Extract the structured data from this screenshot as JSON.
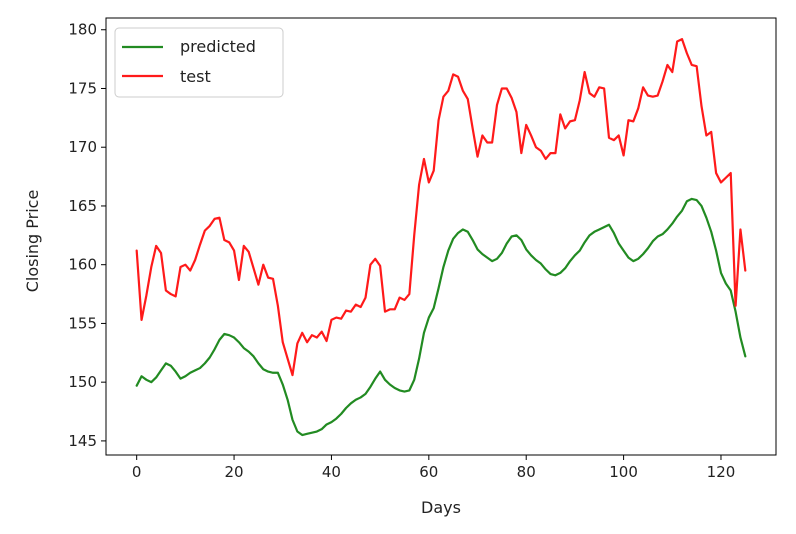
{
  "chart_data": {
    "type": "line",
    "title": "",
    "xlabel": "Days",
    "ylabel": "Closing Price",
    "xlim": [
      -6.3,
      131.3
    ],
    "ylim": [
      143.8,
      181.0
    ],
    "x_ticks": [
      0,
      20,
      40,
      60,
      80,
      100,
      120
    ],
    "y_ticks": [
      145,
      150,
      155,
      160,
      165,
      170,
      175,
      180
    ],
    "grid": false,
    "legend_position": "top-left",
    "series": [
      {
        "name": "predicted",
        "color": "#228b22",
        "points": [
          [
            0,
            149.7
          ],
          [
            1,
            150.5
          ],
          [
            2,
            150.2
          ],
          [
            3,
            150.0
          ],
          [
            4,
            150.4
          ],
          [
            5,
            151.0
          ],
          [
            6,
            151.6
          ],
          [
            7,
            151.4
          ],
          [
            8,
            150.9
          ],
          [
            9,
            150.3
          ],
          [
            10,
            150.5
          ],
          [
            11,
            150.8
          ],
          [
            12,
            151.0
          ],
          [
            13,
            151.2
          ],
          [
            14,
            151.6
          ],
          [
            15,
            152.1
          ],
          [
            16,
            152.8
          ],
          [
            17,
            153.6
          ],
          [
            18,
            154.1
          ],
          [
            19,
            154.0
          ],
          [
            20,
            153.8
          ],
          [
            21,
            153.4
          ],
          [
            22,
            152.9
          ],
          [
            23,
            152.6
          ],
          [
            24,
            152.2
          ],
          [
            25,
            151.6
          ],
          [
            26,
            151.1
          ],
          [
            27,
            150.9
          ],
          [
            28,
            150.8
          ],
          [
            29,
            150.8
          ],
          [
            30,
            149.8
          ],
          [
            31,
            148.5
          ],
          [
            32,
            146.8
          ],
          [
            33,
            145.8
          ],
          [
            34,
            145.5
          ],
          [
            35,
            145.6
          ],
          [
            36,
            145.7
          ],
          [
            37,
            145.8
          ],
          [
            38,
            146.0
          ],
          [
            39,
            146.4
          ],
          [
            40,
            146.6
          ],
          [
            41,
            146.9
          ],
          [
            42,
            147.3
          ],
          [
            43,
            147.8
          ],
          [
            44,
            148.2
          ],
          [
            45,
            148.5
          ],
          [
            46,
            148.7
          ],
          [
            47,
            149.0
          ],
          [
            48,
            149.6
          ],
          [
            49,
            150.3
          ],
          [
            50,
            150.9
          ],
          [
            51,
            150.2
          ],
          [
            52,
            149.8
          ],
          [
            53,
            149.5
          ],
          [
            54,
            149.3
          ],
          [
            55,
            149.2
          ],
          [
            56,
            149.3
          ],
          [
            57,
            150.2
          ],
          [
            58,
            152.0
          ],
          [
            59,
            154.2
          ],
          [
            60,
            155.5
          ],
          [
            61,
            156.3
          ],
          [
            62,
            158.0
          ],
          [
            63,
            159.8
          ],
          [
            64,
            161.2
          ],
          [
            65,
            162.2
          ],
          [
            66,
            162.7
          ],
          [
            67,
            163.0
          ],
          [
            68,
            162.8
          ],
          [
            69,
            162.1
          ],
          [
            70,
            161.3
          ],
          [
            71,
            160.9
          ],
          [
            72,
            160.6
          ],
          [
            73,
            160.3
          ],
          [
            74,
            160.5
          ],
          [
            75,
            161.0
          ],
          [
            76,
            161.8
          ],
          [
            77,
            162.4
          ],
          [
            78,
            162.5
          ],
          [
            79,
            162.1
          ],
          [
            80,
            161.3
          ],
          [
            81,
            160.8
          ],
          [
            82,
            160.4
          ],
          [
            83,
            160.1
          ],
          [
            84,
            159.6
          ],
          [
            85,
            159.2
          ],
          [
            86,
            159.1
          ],
          [
            87,
            159.3
          ],
          [
            88,
            159.7
          ],
          [
            89,
            160.3
          ],
          [
            90,
            160.8
          ],
          [
            91,
            161.2
          ],
          [
            92,
            161.9
          ],
          [
            93,
            162.5
          ],
          [
            94,
            162.8
          ],
          [
            95,
            163.0
          ],
          [
            96,
            163.2
          ],
          [
            97,
            163.4
          ],
          [
            98,
            162.7
          ],
          [
            99,
            161.8
          ],
          [
            100,
            161.2
          ],
          [
            101,
            160.6
          ],
          [
            102,
            160.3
          ],
          [
            103,
            160.5
          ],
          [
            104,
            160.9
          ],
          [
            105,
            161.4
          ],
          [
            106,
            162.0
          ],
          [
            107,
            162.4
          ],
          [
            108,
            162.6
          ],
          [
            109,
            163.0
          ],
          [
            110,
            163.5
          ],
          [
            111,
            164.1
          ],
          [
            112,
            164.6
          ],
          [
            113,
            165.4
          ],
          [
            114,
            165.6
          ],
          [
            115,
            165.5
          ],
          [
            116,
            165.0
          ],
          [
            117,
            164.0
          ],
          [
            118,
            162.8
          ],
          [
            119,
            161.2
          ],
          [
            120,
            159.3
          ],
          [
            121,
            158.4
          ],
          [
            122,
            157.8
          ],
          [
            123,
            156.0
          ],
          [
            124,
            153.8
          ],
          [
            125,
            152.2
          ]
        ]
      },
      {
        "name": "test",
        "color": "#ff1a1a",
        "points": [
          [
            0,
            161.2
          ],
          [
            1,
            155.3
          ],
          [
            2,
            157.4
          ],
          [
            3,
            159.8
          ],
          [
            4,
            161.6
          ],
          [
            5,
            161.0
          ],
          [
            6,
            157.8
          ],
          [
            7,
            157.5
          ],
          [
            8,
            157.3
          ],
          [
            9,
            159.8
          ],
          [
            10,
            160.0
          ],
          [
            11,
            159.5
          ],
          [
            12,
            160.4
          ],
          [
            13,
            161.7
          ],
          [
            14,
            162.9
          ],
          [
            15,
            163.3
          ],
          [
            16,
            163.9
          ],
          [
            17,
            164.0
          ],
          [
            18,
            162.1
          ],
          [
            19,
            161.9
          ],
          [
            20,
            161.2
          ],
          [
            21,
            158.7
          ],
          [
            22,
            161.6
          ],
          [
            23,
            161.1
          ],
          [
            24,
            159.7
          ],
          [
            25,
            158.3
          ],
          [
            26,
            160.0
          ],
          [
            27,
            158.9
          ],
          [
            28,
            158.8
          ],
          [
            29,
            156.5
          ],
          [
            30,
            153.4
          ],
          [
            31,
            152.0
          ],
          [
            32,
            150.6
          ],
          [
            33,
            153.3
          ],
          [
            34,
            154.2
          ],
          [
            35,
            153.4
          ],
          [
            36,
            154.0
          ],
          [
            37,
            153.8
          ],
          [
            38,
            154.3
          ],
          [
            39,
            153.5
          ],
          [
            40,
            155.3
          ],
          [
            41,
            155.5
          ],
          [
            42,
            155.4
          ],
          [
            43,
            156.1
          ],
          [
            44,
            156.0
          ],
          [
            45,
            156.6
          ],
          [
            46,
            156.4
          ],
          [
            47,
            157.2
          ],
          [
            48,
            160.0
          ],
          [
            49,
            160.5
          ],
          [
            50,
            159.9
          ],
          [
            51,
            156.0
          ],
          [
            52,
            156.2
          ],
          [
            53,
            156.2
          ],
          [
            54,
            157.2
          ],
          [
            55,
            157.0
          ],
          [
            56,
            157.5
          ],
          [
            57,
            162.5
          ],
          [
            58,
            166.8
          ],
          [
            59,
            169.0
          ],
          [
            60,
            167.0
          ],
          [
            61,
            168.0
          ],
          [
            62,
            172.3
          ],
          [
            63,
            174.3
          ],
          [
            64,
            174.8
          ],
          [
            65,
            176.2
          ],
          [
            66,
            176.0
          ],
          [
            67,
            174.8
          ],
          [
            68,
            174.1
          ],
          [
            69,
            171.6
          ],
          [
            70,
            169.2
          ],
          [
            71,
            171.0
          ],
          [
            72,
            170.4
          ],
          [
            73,
            170.4
          ],
          [
            74,
            173.6
          ],
          [
            75,
            175.0
          ],
          [
            76,
            175.0
          ],
          [
            77,
            174.2
          ],
          [
            78,
            173.0
          ],
          [
            79,
            169.5
          ],
          [
            80,
            171.9
          ],
          [
            81,
            171.0
          ],
          [
            82,
            170.0
          ],
          [
            83,
            169.7
          ],
          [
            84,
            169.0
          ],
          [
            85,
            169.5
          ],
          [
            86,
            169.5
          ],
          [
            87,
            172.8
          ],
          [
            88,
            171.6
          ],
          [
            89,
            172.2
          ],
          [
            90,
            172.3
          ],
          [
            91,
            174.0
          ],
          [
            92,
            176.4
          ],
          [
            93,
            174.6
          ],
          [
            94,
            174.3
          ],
          [
            95,
            175.1
          ],
          [
            96,
            175.0
          ],
          [
            97,
            170.8
          ],
          [
            98,
            170.6
          ],
          [
            99,
            171.0
          ],
          [
            100,
            169.3
          ],
          [
            101,
            172.3
          ],
          [
            102,
            172.2
          ],
          [
            103,
            173.3
          ],
          [
            104,
            175.1
          ],
          [
            105,
            174.4
          ],
          [
            106,
            174.3
          ],
          [
            107,
            174.4
          ],
          [
            108,
            175.6
          ],
          [
            109,
            177.0
          ],
          [
            110,
            176.4
          ],
          [
            111,
            179.0
          ],
          [
            112,
            179.2
          ],
          [
            113,
            178.0
          ],
          [
            114,
            177.0
          ],
          [
            115,
            176.9
          ],
          [
            116,
            173.5
          ],
          [
            117,
            171.0
          ],
          [
            118,
            171.3
          ],
          [
            119,
            167.8
          ],
          [
            120,
            167.0
          ],
          [
            121,
            167.4
          ],
          [
            122,
            167.8
          ],
          [
            123,
            156.5
          ],
          [
            124,
            163.0
          ],
          [
            125,
            159.5
          ]
        ]
      }
    ]
  }
}
